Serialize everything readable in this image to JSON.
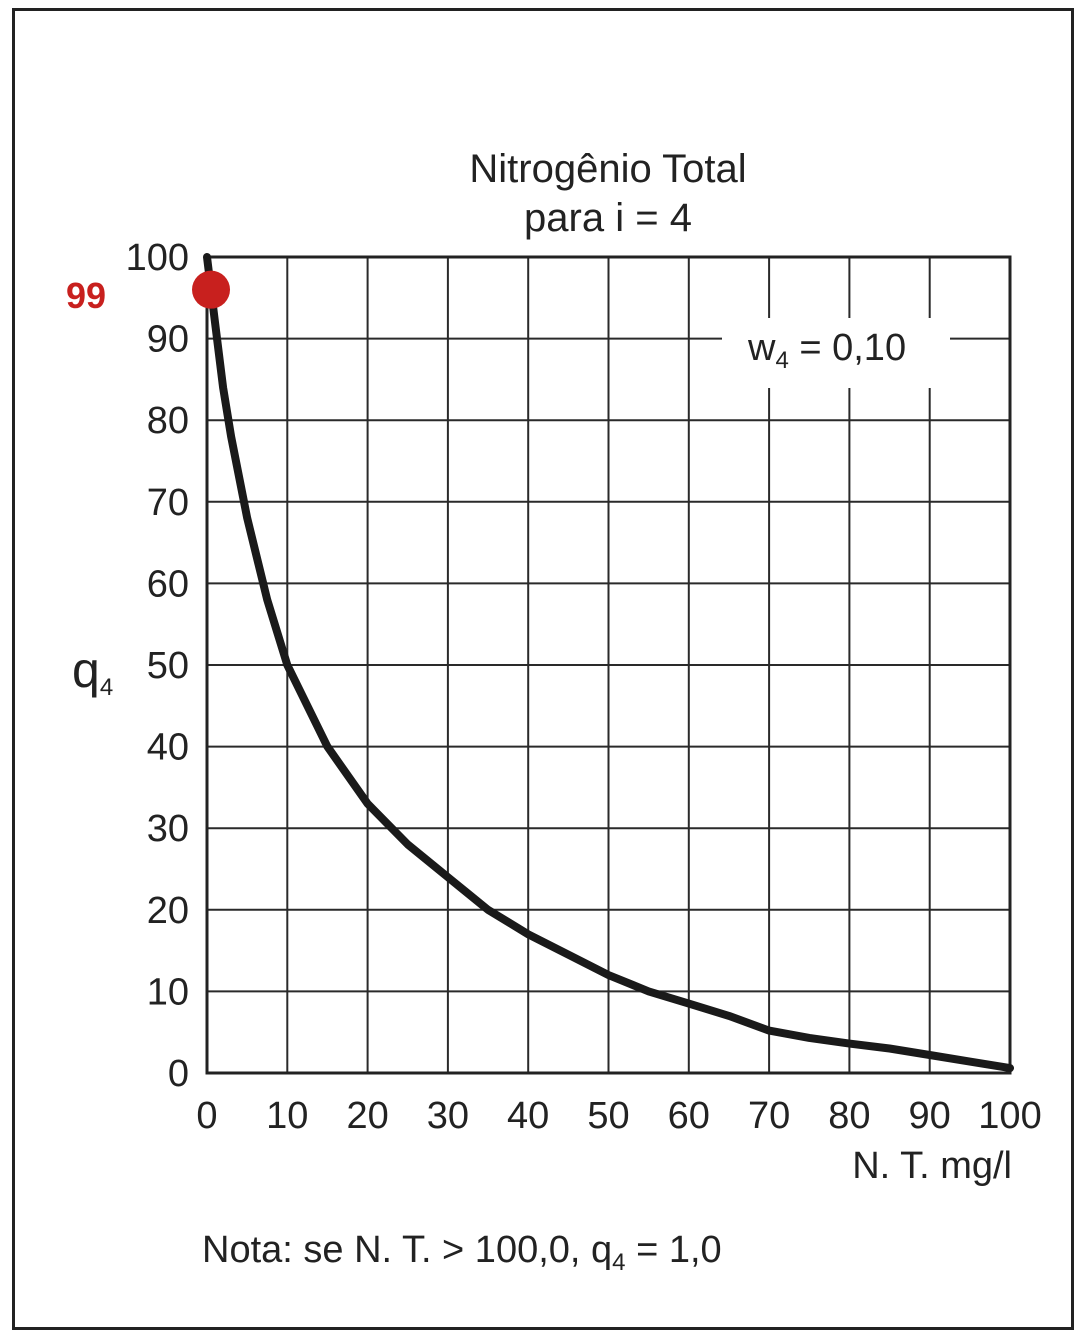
{
  "chart_data": {
    "type": "line",
    "title_line1": "Nitrogênio Total",
    "title_line2": "para i = 4",
    "ylabel": "q",
    "ylabel_sub": "4",
    "xlabel": "N. T.  mg/l",
    "xlim": [
      0,
      100
    ],
    "ylim": [
      0,
      100
    ],
    "x_ticks": [
      "0",
      "10",
      "20",
      "30",
      "40",
      "50",
      "60",
      "70",
      "80",
      "90",
      "100"
    ],
    "y_ticks": [
      "0",
      "10",
      "20",
      "30",
      "40",
      "50",
      "60",
      "70",
      "80",
      "90",
      "100"
    ],
    "grid": true,
    "weight_annotation": {
      "prefix": "w",
      "sub": "4",
      "text": " = 0,10"
    },
    "highlight": {
      "label": "99",
      "x": 0.5,
      "y": 96,
      "color": "#c8201e"
    },
    "series": [
      {
        "x": [
          0,
          1,
          2,
          3,
          5,
          7.5,
          10,
          15,
          20,
          25,
          30,
          35,
          40,
          45,
          50,
          55,
          60,
          65,
          70,
          75,
          80,
          85,
          90,
          95,
          100
        ],
        "y": [
          100,
          92,
          84,
          78,
          68,
          58,
          50,
          40,
          33,
          28,
          24,
          20,
          17,
          14.5,
          12,
          10,
          8.5,
          7,
          5.2,
          4.3,
          3.6,
          3,
          2.2,
          1.4,
          0.6
        ],
        "color": "#1a1a1a"
      }
    ],
    "note": {
      "prefix": "Nota: se N. T. > 100,0,  q",
      "sub": "4",
      "suffix": " = 1,0"
    }
  }
}
